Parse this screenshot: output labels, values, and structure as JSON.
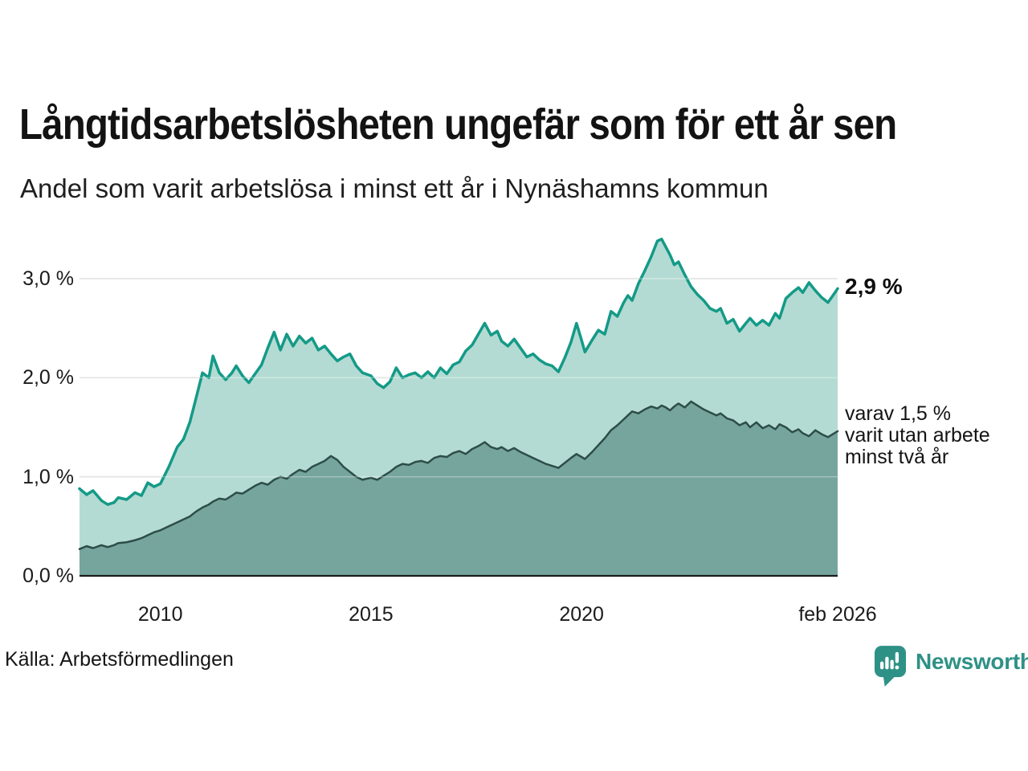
{
  "header": {
    "title": "Långtidsarbetslösheten ungefär som för ett år sen",
    "subtitle": "Andel som varit arbetslösa i minst ett år i Nynäshamns kommun"
  },
  "chart_data": {
    "type": "area",
    "title": "Långtidsarbetslösheten ungefär som för ett år sen",
    "subtitle": "Andel som varit arbetslösa i minst ett år i Nynäshamns kommun",
    "xlabel": "",
    "ylabel": "",
    "xlim": [
      2008.08,
      2026.08
    ],
    "ylim": [
      0,
      3.5
    ],
    "grid": true,
    "legend_position": "none",
    "yticks": [
      {
        "value": 0,
        "label": "0,0 %"
      },
      {
        "value": 1,
        "label": "1,0 %"
      },
      {
        "value": 2,
        "label": "2,0 %"
      },
      {
        "value": 3,
        "label": "3,0 %"
      }
    ],
    "xticks": [
      {
        "value": 2010,
        "label": "2010"
      },
      {
        "value": 2015,
        "label": "2015"
      },
      {
        "value": 2020,
        "label": "2020"
      },
      {
        "value": 2026.08,
        "label": "feb 2026"
      }
    ],
    "x": [
      2008.08,
      2008.25,
      2008.4,
      2008.6,
      2008.75,
      2008.9,
      2009.0,
      2009.2,
      2009.4,
      2009.55,
      2009.7,
      2009.85,
      2010.0,
      2010.2,
      2010.4,
      2010.55,
      2010.7,
      2010.85,
      2011.0,
      2011.15,
      2011.25,
      2011.4,
      2011.55,
      2011.7,
      2011.8,
      2011.95,
      2012.1,
      2012.25,
      2012.4,
      2012.55,
      2012.7,
      2012.85,
      2013.0,
      2013.15,
      2013.3,
      2013.45,
      2013.6,
      2013.75,
      2013.9,
      2014.05,
      2014.2,
      2014.35,
      2014.5,
      2014.65,
      2014.8,
      2015.0,
      2015.15,
      2015.3,
      2015.45,
      2015.6,
      2015.75,
      2015.9,
      2016.05,
      2016.2,
      2016.35,
      2016.5,
      2016.65,
      2016.8,
      2016.95,
      2017.1,
      2017.25,
      2017.4,
      2017.55,
      2017.7,
      2017.85,
      2018.0,
      2018.1,
      2018.25,
      2018.4,
      2018.55,
      2018.7,
      2018.85,
      2019.0,
      2019.15,
      2019.3,
      2019.45,
      2019.6,
      2019.75,
      2019.88,
      2020.0,
      2020.08,
      2020.25,
      2020.4,
      2020.55,
      2020.7,
      2020.85,
      2021.0,
      2021.1,
      2021.2,
      2021.35,
      2021.5,
      2021.65,
      2021.8,
      2021.9,
      2022.0,
      2022.1,
      2022.2,
      2022.3,
      2022.45,
      2022.6,
      2022.75,
      2022.9,
      2023.05,
      2023.2,
      2023.3,
      2023.45,
      2023.6,
      2023.75,
      2023.9,
      2024.0,
      2024.15,
      2024.3,
      2024.45,
      2024.6,
      2024.7,
      2024.85,
      2025.0,
      2025.15,
      2025.25,
      2025.4,
      2025.55,
      2025.7,
      2025.85,
      2026.0,
      2026.08
    ],
    "series": [
      {
        "name": "Andel som varit arbetslösa i minst ett år",
        "line_color": "#149a87",
        "fill_color": "#b4dbd3",
        "line_width": 3.5,
        "values": [
          0.88,
          0.82,
          0.86,
          0.76,
          0.72,
          0.74,
          0.79,
          0.77,
          0.84,
          0.81,
          0.94,
          0.9,
          0.93,
          1.1,
          1.3,
          1.38,
          1.55,
          1.8,
          2.05,
          2.0,
          2.22,
          2.05,
          1.98,
          2.05,
          2.12,
          2.02,
          1.95,
          2.04,
          2.13,
          2.3,
          2.46,
          2.28,
          2.44,
          2.32,
          2.42,
          2.35,
          2.4,
          2.28,
          2.32,
          2.24,
          2.17,
          2.21,
          2.24,
          2.12,
          2.05,
          2.02,
          1.94,
          1.9,
          1.96,
          2.1,
          2.0,
          2.03,
          2.05,
          2.0,
          2.06,
          2.0,
          2.1,
          2.04,
          2.13,
          2.16,
          2.27,
          2.33,
          2.44,
          2.55,
          2.43,
          2.47,
          2.37,
          2.32,
          2.39,
          2.3,
          2.21,
          2.24,
          2.18,
          2.14,
          2.12,
          2.06,
          2.2,
          2.36,
          2.55,
          2.38,
          2.26,
          2.38,
          2.48,
          2.44,
          2.67,
          2.62,
          2.76,
          2.83,
          2.78,
          2.95,
          3.08,
          3.22,
          3.38,
          3.4,
          3.32,
          3.24,
          3.14,
          3.17,
          3.04,
          2.92,
          2.84,
          2.78,
          2.7,
          2.67,
          2.7,
          2.55,
          2.59,
          2.47,
          2.55,
          2.6,
          2.53,
          2.58,
          2.53,
          2.65,
          2.6,
          2.8,
          2.86,
          2.91,
          2.86,
          2.96,
          2.88,
          2.81,
          2.76,
          2.85,
          2.9
        ]
      },
      {
        "name": "varav utan arbete minst två år",
        "line_color": "#2d4d48",
        "fill_color": "#76a59e",
        "line_width": 2.5,
        "values": [
          0.27,
          0.3,
          0.28,
          0.31,
          0.29,
          0.31,
          0.33,
          0.34,
          0.36,
          0.38,
          0.41,
          0.44,
          0.46,
          0.5,
          0.54,
          0.57,
          0.6,
          0.65,
          0.69,
          0.72,
          0.75,
          0.78,
          0.77,
          0.81,
          0.84,
          0.83,
          0.87,
          0.91,
          0.94,
          0.92,
          0.97,
          1.0,
          0.98,
          1.03,
          1.07,
          1.05,
          1.1,
          1.13,
          1.16,
          1.21,
          1.17,
          1.1,
          1.05,
          1.0,
          0.97,
          0.99,
          0.97,
          1.01,
          1.05,
          1.1,
          1.13,
          1.12,
          1.15,
          1.16,
          1.14,
          1.19,
          1.21,
          1.2,
          1.24,
          1.26,
          1.23,
          1.28,
          1.31,
          1.35,
          1.3,
          1.28,
          1.3,
          1.26,
          1.29,
          1.25,
          1.22,
          1.19,
          1.16,
          1.13,
          1.11,
          1.09,
          1.14,
          1.19,
          1.23,
          1.2,
          1.18,
          1.25,
          1.32,
          1.39,
          1.47,
          1.52,
          1.58,
          1.62,
          1.66,
          1.64,
          1.68,
          1.71,
          1.69,
          1.72,
          1.7,
          1.67,
          1.71,
          1.74,
          1.7,
          1.76,
          1.72,
          1.68,
          1.65,
          1.62,
          1.64,
          1.59,
          1.57,
          1.52,
          1.55,
          1.5,
          1.55,
          1.49,
          1.52,
          1.48,
          1.53,
          1.5,
          1.45,
          1.48,
          1.44,
          1.41,
          1.47,
          1.43,
          1.4,
          1.44,
          1.46
        ]
      }
    ],
    "annotations": {
      "latest_value": "2,9 %",
      "secondary": "varav 1,5 %\nvarit utan arbete\nminst två år"
    }
  },
  "footer": {
    "source": "Källa: Arbetsförmedlingen",
    "brand": "Newsworthy"
  },
  "colors": {
    "accent_teal": "#149a87",
    "area_light": "#b4dbd3",
    "area_dark_fill": "#76a59e",
    "dark_line": "#2d4d48",
    "grid": "#d6d6d6",
    "axis": "#1c1c1c",
    "brand_teal": "#2e9186"
  }
}
